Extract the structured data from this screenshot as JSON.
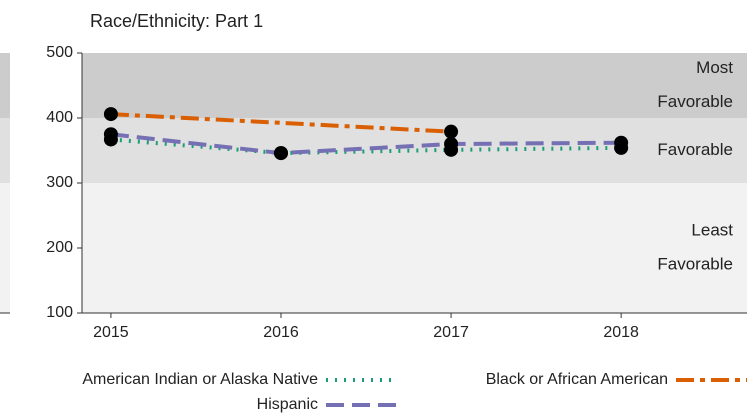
{
  "chart_data": {
    "type": "line",
    "title": "Race/Ethnicity: Part 1",
    "x": [
      2015,
      2016,
      2017,
      2018
    ],
    "xlim": [
      2014.83,
      2018.74
    ],
    "xticks": [
      2015,
      2016,
      2017,
      2018
    ],
    "ylim": [
      100,
      500
    ],
    "yticks": [
      100,
      200,
      300,
      400,
      500
    ],
    "bands": [
      {
        "from": 400,
        "to": 500,
        "color": "#cccccc",
        "label": [
          "Most",
          "Favorable"
        ]
      },
      {
        "from": 300,
        "to": 400,
        "color": "#e0e0e0",
        "label": [
          "Favorable"
        ]
      },
      {
        "from": 100,
        "to": 300,
        "color": "#f2f2f2",
        "label": [
          "Least",
          "Favorable"
        ]
      }
    ],
    "series": [
      {
        "name": "American Indian or Alaska Native",
        "color": "#1b9e77",
        "dash": "dotted",
        "x": [
          2015,
          2016,
          2017,
          2018
        ],
        "values": [
          367,
          346,
          351,
          354
        ]
      },
      {
        "name": "Black or African American",
        "color": "#d95f02",
        "dash": "dashdot",
        "x": [
          2015,
          2017
        ],
        "values": [
          406,
          379
        ]
      },
      {
        "name": "Hispanic",
        "color": "#7570b3",
        "dash": "longdash",
        "x": [
          2015,
          2016,
          2017,
          2018
        ],
        "values": [
          375,
          346,
          360,
          362
        ]
      }
    ]
  }
}
